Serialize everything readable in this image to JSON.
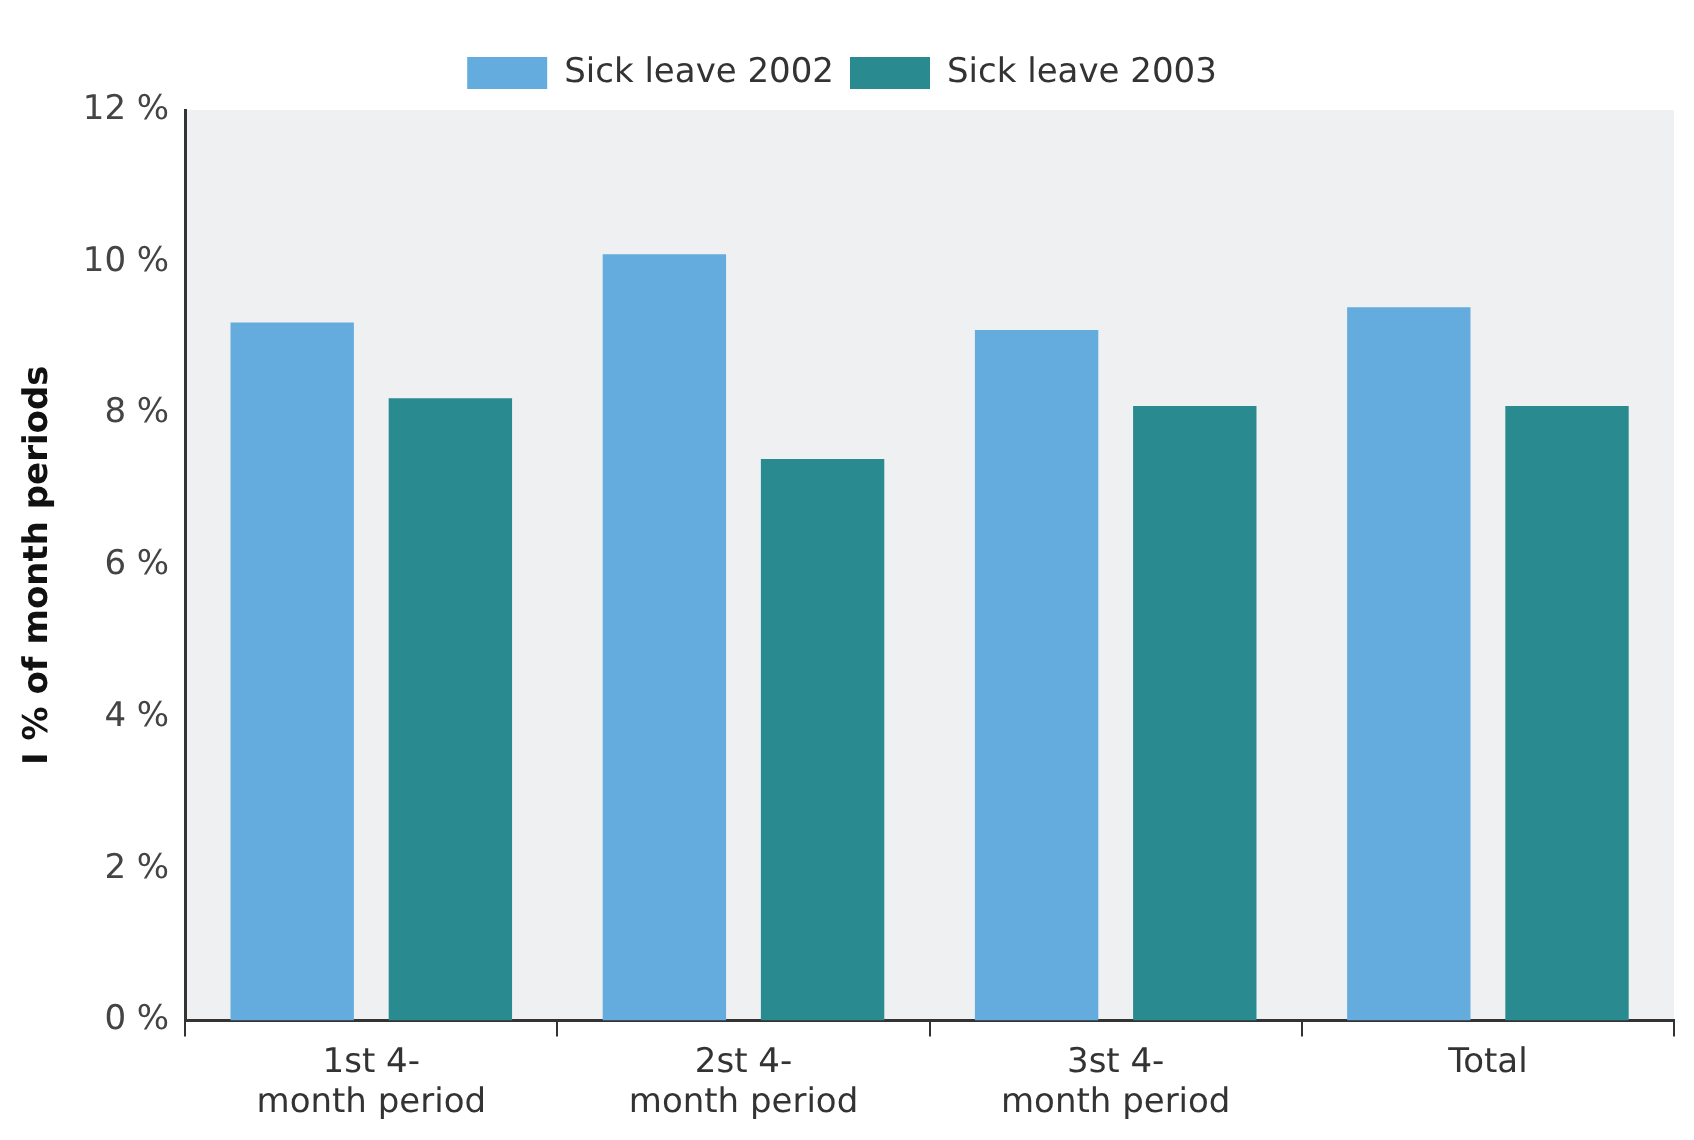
{
  "chart_data": {
    "type": "bar",
    "ylabel": "I % of month periods",
    "categories": [
      "1st 4-\nmonth period",
      "2st 4-\nmonth period",
      "3st 4-\nmonth period",
      "Total"
    ],
    "series": [
      {
        "name": "Sick leave 2002",
        "color": "#65acde",
        "values": [
          9.2,
          10.1,
          9.1,
          9.4
        ]
      },
      {
        "name": "Sick leave 2003",
        "color": "#298a90",
        "values": [
          8.2,
          7.4,
          8.1,
          8.1
        ]
      }
    ],
    "ylim": [
      0,
      12
    ],
    "yticks": [
      {
        "value": 0,
        "label": "0 %"
      },
      {
        "value": 2,
        "label": "2 %"
      },
      {
        "value": 4,
        "label": "4 %"
      },
      {
        "value": 6,
        "label": "6 %"
      },
      {
        "value": 8,
        "label": "8 %"
      },
      {
        "value": 10,
        "label": "10 %"
      },
      {
        "value": 12,
        "label": "12 %"
      }
    ],
    "grid": false,
    "legend": "top"
  }
}
